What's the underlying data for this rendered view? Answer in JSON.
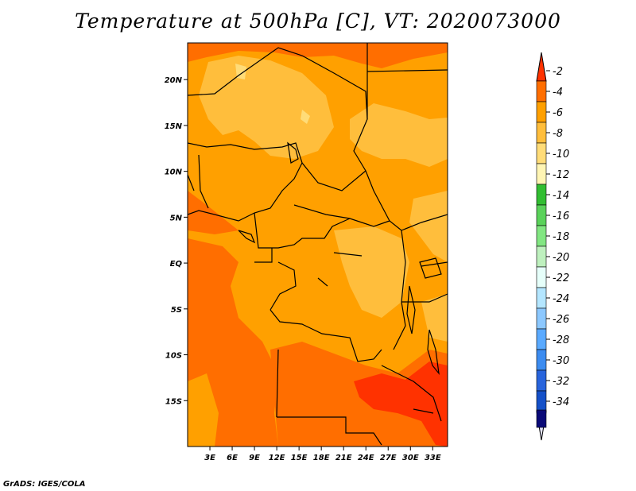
{
  "title": "Temperature at 500hPa [C], VT: 2020073000",
  "credit": "GrADS: IGES/COLA",
  "map": {
    "lon_range": [
      0,
      35
    ],
    "lat_range": [
      -20,
      24
    ],
    "lat_ticks": [
      {
        "value": 20,
        "label": "20N"
      },
      {
        "value": 15,
        "label": "15N"
      },
      {
        "value": 10,
        "label": "10N"
      },
      {
        "value": 5,
        "label": "5N"
      },
      {
        "value": 0,
        "label": "EQ"
      },
      {
        "value": -5,
        "label": "5S"
      },
      {
        "value": -10,
        "label": "10S"
      },
      {
        "value": -15,
        "label": "15S"
      }
    ],
    "lon_ticks": [
      {
        "value": 3,
        "label": "3E"
      },
      {
        "value": 6,
        "label": "6E"
      },
      {
        "value": 9,
        "label": "9E"
      },
      {
        "value": 12,
        "label": "12E"
      },
      {
        "value": 15,
        "label": "15E"
      },
      {
        "value": 18,
        "label": "18E"
      },
      {
        "value": 21,
        "label": "21E"
      },
      {
        "value": 24,
        "label": "24E"
      },
      {
        "value": 27,
        "label": "27E"
      },
      {
        "value": 30,
        "label": "30E"
      },
      {
        "value": 33,
        "label": "33E"
      }
    ]
  },
  "colorbar": {
    "levels": [
      "-2",
      "-4",
      "-6",
      "-8",
      "-10",
      "-12",
      "-14",
      "-16",
      "-18",
      "-20",
      "-22",
      "-24",
      "-26",
      "-28",
      "-30",
      "-32",
      "-34"
    ],
    "colors": [
      "#ff3200",
      "#ff6e00",
      "#ffa000",
      "#ffbe3c",
      "#ffdc78",
      "#fff5b4",
      "#32be32",
      "#5ad25a",
      "#82e682",
      "#bef0be",
      "#e6fffa",
      "#b4e6ff",
      "#8cc8ff",
      "#5aaaff",
      "#3c8cf0",
      "#2864dc",
      "#1450c8",
      "#0a0a78"
    ]
  }
}
